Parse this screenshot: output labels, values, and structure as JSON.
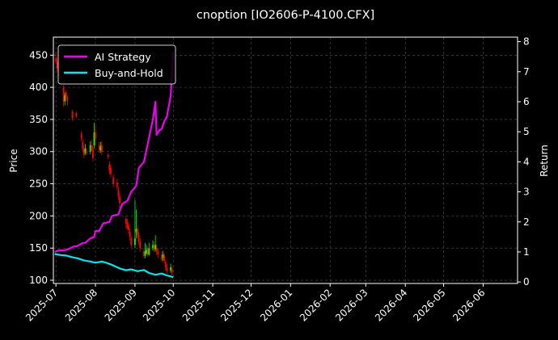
{
  "chart_data": {
    "type": "line",
    "title": "cnoption [IO2606-P-4100.CFX]",
    "ylabel": "Price",
    "y2label": "Return",
    "ylim": [
      95,
      478
    ],
    "y2lim": [
      -0.05,
      8.15
    ],
    "xlim": [
      "2025-06-29",
      "2026-06-28"
    ],
    "yticks": [
      100,
      150,
      200,
      250,
      300,
      350,
      400,
      450
    ],
    "y2ticks": [
      0,
      1,
      2,
      3,
      4,
      5,
      6,
      7,
      8
    ],
    "xticks": [
      "2025-07",
      "2025-08",
      "2025-09",
      "2025-10",
      "2025-11",
      "2025-12",
      "2026-01",
      "2026-02",
      "2026-03",
      "2026-04",
      "2026-05",
      "2026-06"
    ],
    "grid": true,
    "legend_position": "top-left",
    "colors": {
      "up": "#00ff00",
      "down": "#ff0000",
      "ai": "#ee00ee",
      "bh": "#00e5ee"
    },
    "series": [
      {
        "name": "AI Strategy",
        "axis": "right",
        "color": "#ee00ee",
        "points": [
          [
            "2025-06-30",
            1.0
          ],
          [
            "2025-07-03",
            1.05
          ],
          [
            "2025-07-08",
            1.06
          ],
          [
            "2025-07-11",
            1.1
          ],
          [
            "2025-07-15",
            1.18
          ],
          [
            "2025-07-18",
            1.2
          ],
          [
            "2025-07-22",
            1.3
          ],
          [
            "2025-07-24",
            1.3
          ],
          [
            "2025-07-28",
            1.45
          ],
          [
            "2025-07-31",
            1.5
          ],
          [
            "2025-08-01",
            1.7
          ],
          [
            "2025-08-04",
            1.7
          ],
          [
            "2025-08-07",
            1.95
          ],
          [
            "2025-08-12",
            2.0
          ],
          [
            "2025-08-14",
            2.2
          ],
          [
            "2025-08-19",
            2.25
          ],
          [
            "2025-08-22",
            2.6
          ],
          [
            "2025-08-26",
            2.7
          ],
          [
            "2025-08-29",
            3.0
          ],
          [
            "2025-09-02",
            3.2
          ],
          [
            "2025-09-04",
            3.8
          ],
          [
            "2025-09-08",
            4.0
          ],
          [
            "2025-09-11",
            4.6
          ],
          [
            "2025-09-15",
            5.4
          ],
          [
            "2025-09-17",
            6.0
          ],
          [
            "2025-09-18",
            4.9
          ],
          [
            "2025-09-20",
            5.05
          ],
          [
            "2025-09-22",
            5.1
          ],
          [
            "2025-09-24",
            5.35
          ],
          [
            "2025-09-26",
            5.5
          ],
          [
            "2025-09-29",
            6.2
          ],
          [
            "2025-09-30",
            7.0
          ],
          [
            "2025-10-01",
            7.65
          ]
        ]
      },
      {
        "name": "Buy-and-Hold",
        "axis": "right",
        "color": "#00e5ee",
        "points": [
          [
            "2025-06-30",
            0.93
          ],
          [
            "2025-07-04",
            0.9
          ],
          [
            "2025-07-09",
            0.88
          ],
          [
            "2025-07-14",
            0.82
          ],
          [
            "2025-07-18",
            0.79
          ],
          [
            "2025-07-23",
            0.72
          ],
          [
            "2025-07-28",
            0.68
          ],
          [
            "2025-08-01",
            0.64
          ],
          [
            "2025-08-06",
            0.68
          ],
          [
            "2025-08-11",
            0.62
          ],
          [
            "2025-08-15",
            0.55
          ],
          [
            "2025-08-20",
            0.45
          ],
          [
            "2025-08-25",
            0.39
          ],
          [
            "2025-08-29",
            0.42
          ],
          [
            "2025-09-03",
            0.36
          ],
          [
            "2025-09-08",
            0.4
          ],
          [
            "2025-09-12",
            0.3
          ],
          [
            "2025-09-17",
            0.24
          ],
          [
            "2025-09-22",
            0.28
          ],
          [
            "2025-09-26",
            0.22
          ],
          [
            "2025-10-01",
            0.16
          ]
        ]
      }
    ],
    "candles": [
      [
        "2025-07-01",
        445,
        440,
        455,
        436
      ],
      [
        "2025-07-02",
        440,
        430,
        446,
        425
      ],
      [
        "2025-07-03",
        430,
        422,
        434,
        418
      ],
      [
        "2025-07-04",
        422,
        418,
        428,
        412
      ],
      [
        "2025-07-07",
        400,
        378,
        403,
        370
      ],
      [
        "2025-07-08",
        378,
        388,
        392,
        372
      ],
      [
        "2025-07-09",
        392,
        385,
        396,
        380
      ],
      [
        "2025-07-10",
        385,
        378,
        388,
        372
      ],
      [
        "2025-07-14",
        362,
        352,
        365,
        348
      ],
      [
        "2025-07-17",
        360,
        355,
        362,
        352
      ],
      [
        "2025-07-21",
        328,
        320,
        332,
        316
      ],
      [
        "2025-07-22",
        315,
        305,
        320,
        300
      ],
      [
        "2025-07-23",
        305,
        295,
        310,
        290
      ],
      [
        "2025-07-24",
        298,
        305,
        312,
        295
      ],
      [
        "2025-07-25",
        300,
        298,
        305,
        294
      ],
      [
        "2025-07-28",
        300,
        310,
        316,
        296
      ],
      [
        "2025-07-29",
        310,
        304,
        318,
        300
      ],
      [
        "2025-07-30",
        305,
        290,
        310,
        285
      ],
      [
        "2025-07-31",
        310,
        330,
        345,
        305
      ],
      [
        "2025-08-01",
        330,
        320,
        340,
        310
      ],
      [
        "2025-08-04",
        310,
        302,
        315,
        298
      ],
      [
        "2025-08-05",
        302,
        308,
        315,
        298
      ],
      [
        "2025-08-06",
        310,
        300,
        316,
        295
      ],
      [
        "2025-08-11",
        295,
        292,
        298,
        288
      ],
      [
        "2025-08-12",
        280,
        270,
        285,
        265
      ],
      [
        "2025-08-13",
        275,
        265,
        280,
        260
      ],
      [
        "2025-08-15",
        260,
        250,
        265,
        244
      ],
      [
        "2025-08-18",
        252,
        245,
        258,
        240
      ],
      [
        "2025-08-19",
        240,
        230,
        245,
        225
      ],
      [
        "2025-08-20",
        230,
        220,
        235,
        212
      ],
      [
        "2025-08-25",
        195,
        188,
        200,
        180
      ],
      [
        "2025-08-26",
        190,
        182,
        196,
        178
      ],
      [
        "2025-08-27",
        185,
        178,
        190,
        172
      ],
      [
        "2025-08-28",
        175,
        168,
        180,
        162
      ],
      [
        "2025-08-29",
        165,
        155,
        170,
        150
      ],
      [
        "2025-09-01",
        155,
        165,
        225,
        150
      ],
      [
        "2025-09-02",
        175,
        180,
        210,
        165
      ],
      [
        "2025-09-03",
        180,
        170,
        186,
        165
      ],
      [
        "2025-09-04",
        170,
        160,
        175,
        155
      ],
      [
        "2025-09-05",
        160,
        150,
        165,
        145
      ],
      [
        "2025-09-08",
        145,
        138,
        150,
        135
      ],
      [
        "2025-09-09",
        138,
        145,
        158,
        134
      ],
      [
        "2025-09-10",
        142,
        148,
        155,
        140
      ],
      [
        "2025-09-11",
        148,
        140,
        152,
        136
      ],
      [
        "2025-09-12",
        140,
        150,
        158,
        138
      ],
      [
        "2025-09-15",
        150,
        155,
        162,
        146
      ],
      [
        "2025-09-16",
        155,
        148,
        160,
        144
      ],
      [
        "2025-09-17",
        148,
        155,
        170,
        145
      ],
      [
        "2025-09-18",
        150,
        145,
        156,
        140
      ],
      [
        "2025-09-19",
        145,
        140,
        150,
        135
      ],
      [
        "2025-09-22",
        140,
        132,
        145,
        128
      ],
      [
        "2025-09-23",
        135,
        140,
        145,
        130
      ],
      [
        "2025-09-24",
        138,
        130,
        142,
        126
      ],
      [
        "2025-09-25",
        128,
        120,
        132,
        115
      ],
      [
        "2025-09-26",
        120,
        115,
        125,
        110
      ],
      [
        "2025-09-29",
        115,
        120,
        126,
        112
      ],
      [
        "2025-09-30",
        118,
        112,
        122,
        108
      ]
    ]
  }
}
